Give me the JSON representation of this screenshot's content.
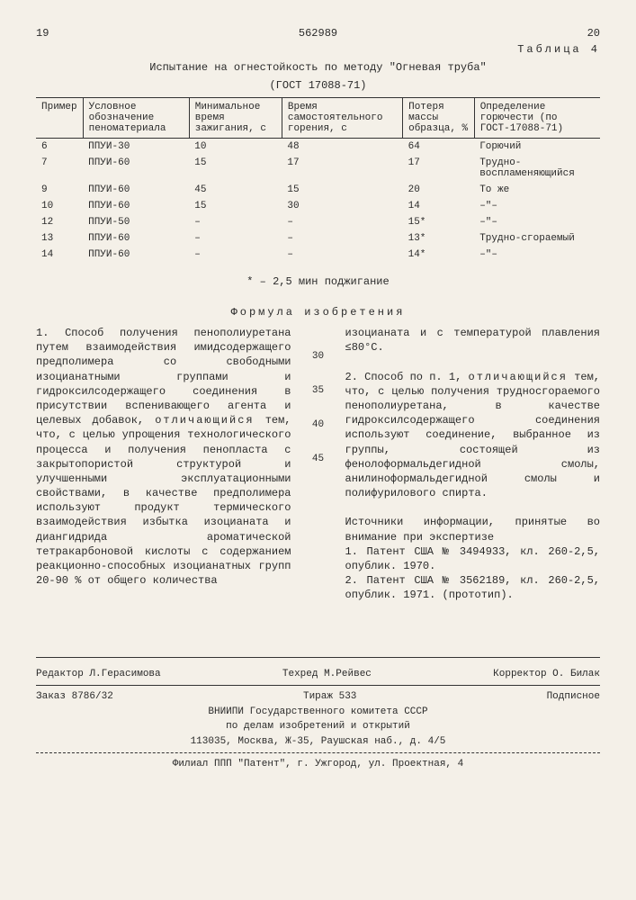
{
  "header": {
    "page_left": "19",
    "doc_number": "562989",
    "page_right": "20",
    "table_label": "Таблица 4",
    "table_title": "Испытание на огнестойкость по методу \"Огневая труба\"",
    "table_subtitle": "(ГОСТ 17088-71)"
  },
  "table": {
    "columns": [
      "Пример",
      "Условное обозначение пеноматериала",
      "Минимальное время зажигания, с",
      "Время самостоятельного горения, с",
      "Потеря массы образца, %",
      "Определение горючести (по ГОСТ-17088-71)"
    ],
    "rows": [
      [
        "6",
        "ППУИ-30",
        "10",
        "48",
        "64",
        "Горючий"
      ],
      [
        "7",
        "ППУИ-60",
        "15",
        "17",
        "17",
        "Трудно-воспламеняющийся"
      ],
      [
        "9",
        "ППУИ-60",
        "45",
        "15",
        "20",
        "То же"
      ],
      [
        "10",
        "ППУИ-60",
        "15",
        "30",
        "14",
        "–\"–"
      ],
      [
        "12",
        "ППУИ-50",
        "–",
        "–",
        "15*",
        "–\"–"
      ],
      [
        "13",
        "ППУИ-60",
        "–",
        "–",
        "13*",
        "Трудно-сгораемый"
      ],
      [
        "14",
        "ППУИ-60",
        "–",
        "–",
        "14*",
        "–\"–"
      ]
    ],
    "footnote": "* – 2,5 мин поджигание"
  },
  "formula": {
    "title": "Формула изобретения",
    "line_nums": [
      "30",
      "35",
      "40",
      "45"
    ],
    "left_col": "1. Способ получения пенополиуретана путем взаимодействия имидсодержащего предполимера со свободными изоцианатными группами и гидроксилсодержащего соединения в присутствии вспенивающего агента и целевых добавок, <span class='spaced'>отличающийся</span> тем, что, с целью упрощения технологического процесса и получения пенопласта с закрытопористой структурой и улучшенными эксплуатационными свойствами, в качестве предполимера используют продукт термического взаимодействия избытка изоцианата и диангидрида ароматической тетракарбоновой кислоты с содержанием реакционно-способных изоцианатных групп 20-90 % от общего количества",
    "right_col": "изоцианата и с температурой плавления ≤80°С.<br><br>2. Способ по п. 1, <span class='spaced'>отличающийся</span> тем, что, с целью получения трудносгораемого пенополиуретана, в качестве гидроксилсодержащего соединения используют соединение, выбранное из группы, состоящей из фенолоформальдегидной смолы, анилиноформальдегидной смолы и полифурилового спирта.<br><br>Источники информации, принятые во внимание при экспертизе<br>1. Патент США № 3494933, кл. 260-2,5, опублик. 1970.<br>2. Патент США № 3562189, кл. 260-2,5, опублик. 1971. (прототип)."
  },
  "footer": {
    "editor": "Редактор Л.Герасимова",
    "tech": "Техред М.Рейвес",
    "corrector": "Корректор О. Билак",
    "order": "Заказ 8786/32",
    "tirazh": "Тираж 533",
    "podpisnoe": "Подписное",
    "org1": "ВНИИПИ Государственного комитета СССР",
    "org2": "по делам изобретений и открытий",
    "addr": "113035, Москва, Ж-35, Раушская наб., д. 4/5",
    "filial": "Филиал ППП \"Патент\", г. Ужгород, ул. Проектная, 4"
  }
}
